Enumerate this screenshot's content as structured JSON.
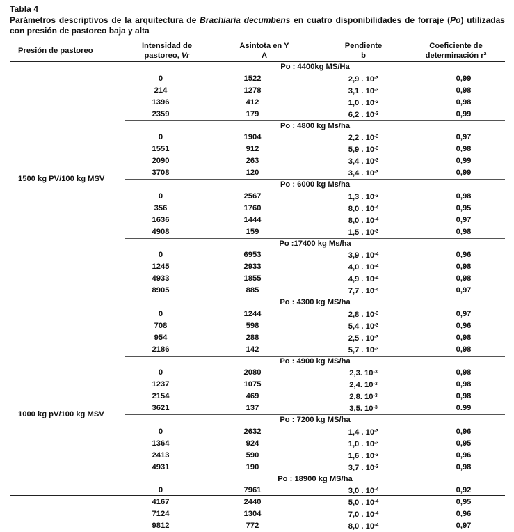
{
  "title": "Tabla 4",
  "caption": {
    "part1": "Parámetros descriptivos de la arquitectura de ",
    "species": "Brachiaria decumbens",
    "part2": " en cuatro disponibilidades de forraje (",
    "po": "Po",
    "part3": ") utilizadas con presión de pastoreo baja y alta"
  },
  "headers": {
    "col1": "Presión de pastoreo",
    "col2_line1": "Intensidad de",
    "col2_line2": "pastoreo, ",
    "col2_var": "Vr",
    "col3_line1": "Asintota en Y",
    "col3_line2": "A",
    "col4_line1": "Pendiente",
    "col4_line2": "b",
    "col5_line1": "Coeficiente de",
    "col5_line2": "determinación r²"
  },
  "groups": [
    {
      "pressure": "1500 kg PV/100 kg MSV",
      "subgroups": [
        {
          "label": "Po : 4400kg MS/Ha",
          "rows": [
            {
              "vr": "0",
              "a": "1522",
              "b_mant": "2,9 . 10",
              "b_exp": "-3",
              "r2": "0,99"
            },
            {
              "vr": "214",
              "a": "1278",
              "b_mant": "3,1 . 10",
              "b_exp": "-3",
              "r2": "0,98"
            },
            {
              "vr": "1396",
              "a": "412",
              "b_mant": "1,0 . 10",
              "b_exp": "-2",
              "r2": "0,98"
            },
            {
              "vr": "2359",
              "a": "179",
              "b_mant": "6,2 . 10",
              "b_exp": "-3",
              "r2": "0,99"
            }
          ]
        },
        {
          "label": "Po : 4800 kg Ms/ha",
          "rows": [
            {
              "vr": "0",
              "a": "1904",
              "b_mant": "2,2 . 10",
              "b_exp": "-3",
              "r2": "0,97"
            },
            {
              "vr": "1551",
              "a": "912",
              "b_mant": "5,9 . 10",
              "b_exp": "-3",
              "r2": "0,98"
            },
            {
              "vr": "2090",
              "a": "263",
              "b_mant": "3,4 . 10",
              "b_exp": "-3",
              "r2": "0,99"
            },
            {
              "vr": "3708",
              "a": "120",
              "b_mant": "3,4 . 10",
              "b_exp": "-3",
              "r2": "0,99"
            }
          ]
        },
        {
          "label": "Po : 6000 kg Ms/ha",
          "rows": [
            {
              "vr": "0",
              "a": "2567",
              "b_mant": "1,3 . 10",
              "b_exp": "-3",
              "r2": "0,98"
            },
            {
              "vr": "356",
              "a": "1760",
              "b_mant": "8,0 . 10",
              "b_exp": "-4",
              "r2": "0,95"
            },
            {
              "vr": "1636",
              "a": "1444",
              "b_mant": "8,0 . 10",
              "b_exp": "-4",
              "r2": "0,97"
            },
            {
              "vr": "4908",
              "a": "159",
              "b_mant": "1,5 . 10",
              "b_exp": "-3",
              "r2": "0,98"
            }
          ]
        },
        {
          "label": "Po :17400 kg Ms/ha",
          "rows": [
            {
              "vr": "0",
              "a": "6953",
              "b_mant": "3,9 . 10",
              "b_exp": "-4",
              "r2": "0,96"
            },
            {
              "vr": "1245",
              "a": "2933",
              "b_mant": "4,0 . 10",
              "b_exp": "-4",
              "r2": "0,98"
            },
            {
              "vr": "4933",
              "a": "1855",
              "b_mant": "4,9 . 10",
              "b_exp": "-4",
              "r2": "0,98"
            },
            {
              "vr": "8905",
              "a": "885",
              "b_mant": "7,7 . 10",
              "b_exp": "-4",
              "r2": "0,97"
            }
          ]
        }
      ]
    },
    {
      "pressure": "1000 kg pV/100 kg MSV",
      "subgroups": [
        {
          "label": "Po : 4300 kg MS/ha",
          "rows": [
            {
              "vr": "0",
              "a": "1244",
              "b_mant": "2,8 . 10",
              "b_exp": "-3",
              "r2": "0,97"
            },
            {
              "vr": "708",
              "a": "598",
              "b_mant": "5,4 . 10",
              "b_exp": "-3",
              "r2": "0,96"
            },
            {
              "vr": "954",
              "a": "288",
              "b_mant": "2,5 . 10",
              "b_exp": "-3",
              "r2": "0,98"
            },
            {
              "vr": "2186",
              "a": "142",
              "b_mant": "5,7 . 10",
              "b_exp": "-3",
              "r2": "0,98"
            }
          ]
        },
        {
          "label": "Po : 4900 kg MS/ha",
          "rows": [
            {
              "vr": "0",
              "a": "2080",
              "b_mant": "2,3. 10",
              "b_exp": "-3",
              "r2": "0,98"
            },
            {
              "vr": "1237",
              "a": "1075",
              "b_mant": "2,4. 10",
              "b_exp": "-3",
              "r2": "0,98"
            },
            {
              "vr": "2154",
              "a": "469",
              "b_mant": "2,8. 10",
              "b_exp": "-3",
              "r2": "0,98"
            },
            {
              "vr": "3621",
              "a": "137",
              "b_mant": "3,5. 10",
              "b_exp": "-3",
              "r2": "0.99"
            }
          ]
        },
        {
          "label": "Po : 7200 kg MS/ha",
          "rows": [
            {
              "vr": "0",
              "a": "2632",
              "b_mant": "1,4 . 10",
              "b_exp": "-3",
              "r2": "0,96"
            },
            {
              "vr": "1364",
              "a": "924",
              "b_mant": "1,0 . 10",
              "b_exp": "-3",
              "r2": "0,95"
            },
            {
              "vr": "2413",
              "a": "590",
              "b_mant": "1,6 . 10",
              "b_exp": "-3",
              "r2": "0,96"
            },
            {
              "vr": "4931",
              "a": "190",
              "b_mant": "3,7 . 10",
              "b_exp": "-3",
              "r2": "0,98"
            }
          ]
        },
        {
          "label": "Po : 18900 kg MS/ha",
          "rows": [
            {
              "vr": "0",
              "a": "7961",
              "b_mant": "3,0 . 10",
              "b_exp": "-4",
              "r2": "0,92"
            },
            {
              "vr": "4167",
              "a": "2440",
              "b_mant": "5,0 . 10",
              "b_exp": "-4",
              "r2": "0,95"
            },
            {
              "vr": "7124",
              "a": "1304",
              "b_mant": "7,0 . 10",
              "b_exp": "-4",
              "r2": "0,96"
            },
            {
              "vr": "9812",
              "a": "772",
              "b_mant": "8,0 . 10",
              "b_exp": "-4",
              "r2": "0,97"
            }
          ]
        }
      ]
    }
  ]
}
